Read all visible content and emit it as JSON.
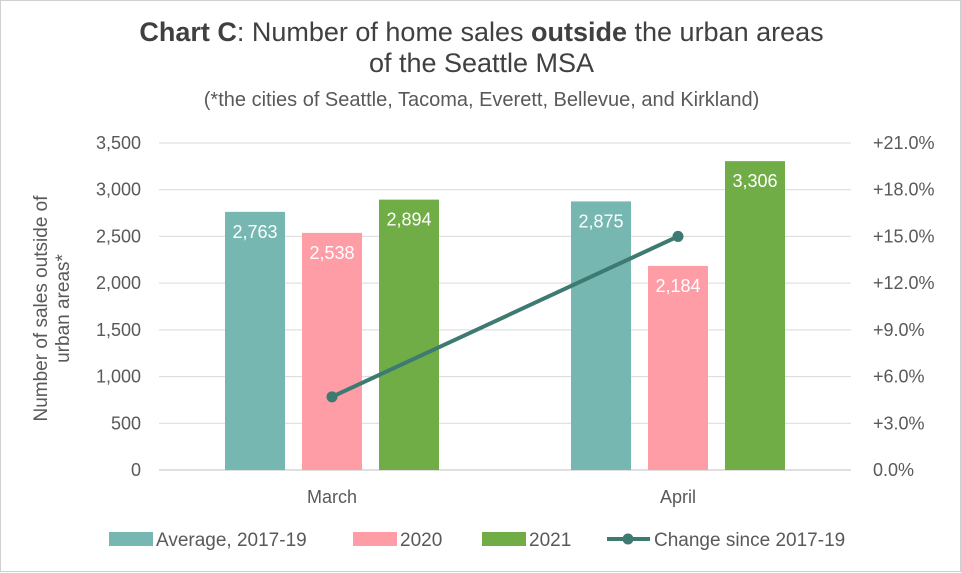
{
  "chart_data": {
    "type": "bar",
    "title": {
      "lead": "Chart C",
      "part1": ": Number of home sales ",
      "emphasis": "outside",
      "part2": " the urban areas",
      "line2": "of the Seattle MSA"
    },
    "subtitle": "(*the cities of Seattle, Tacoma, Everett, Bellevue, and Kirkland)",
    "ylabel_lines": [
      "Number of sales outside of",
      "urban areas*"
    ],
    "categories": [
      "March",
      "April"
    ],
    "series": [
      {
        "name": "Average, 2017-19",
        "values": [
          2763,
          2875
        ],
        "labels": [
          "2,763",
          "2,875"
        ],
        "color": "#76b7b2"
      },
      {
        "name": "2020",
        "values": [
          2538,
          2184
        ],
        "labels": [
          "2,538",
          "2,184"
        ],
        "color": "#ff9da7"
      },
      {
        "name": "2021",
        "values": [
          2894,
          3306
        ],
        "labels": [
          "2,894",
          "3,306"
        ],
        "color": "#70ad47"
      }
    ],
    "line_series": {
      "name": "Change since 2017-19",
      "values": [
        4.7,
        15.0
      ],
      "color": "#3d7a72"
    },
    "ylim": [
      0,
      3500
    ],
    "y_ticks": [
      0,
      500,
      1000,
      1500,
      2000,
      2500,
      3000,
      3500
    ],
    "y_tick_labels": [
      "0",
      "500",
      "1,000",
      "1,500",
      "2,000",
      "2,500",
      "3,000",
      "3,500"
    ],
    "y2lim": [
      0,
      21
    ],
    "y2_ticks": [
      0,
      3,
      6,
      9,
      12,
      15,
      18,
      21
    ],
    "y2_tick_labels": [
      "0.0%",
      "+3.0%",
      "+6.0%",
      "+9.0%",
      "+12.0%",
      "+15.0%",
      "+18.0%",
      "+21.0%"
    ],
    "grid": true,
    "legend_position": "bottom"
  }
}
